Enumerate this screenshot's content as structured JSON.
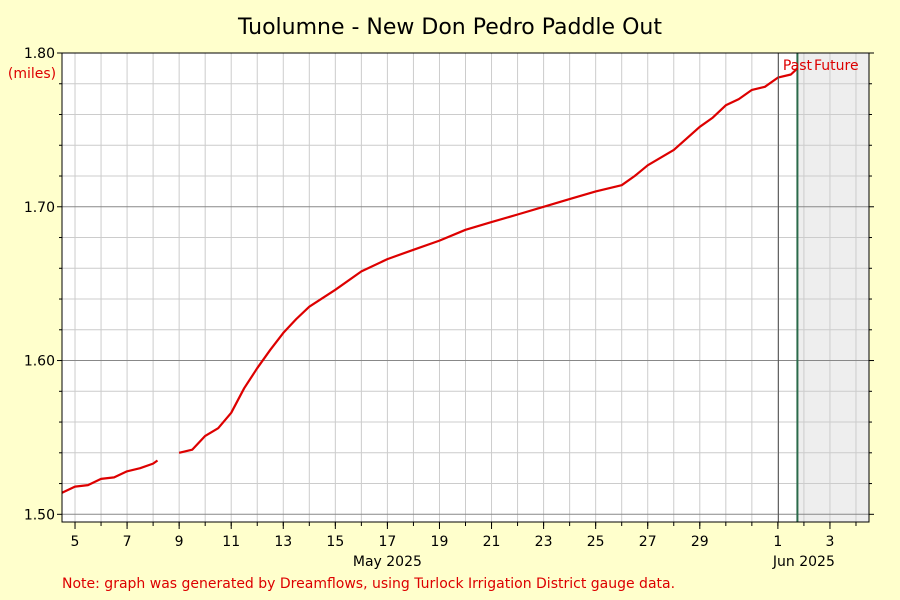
{
  "chart_data": {
    "type": "line",
    "title": "Tuolumne - New Don Pedro Paddle Out",
    "ylabel": "(miles)",
    "ylim": [
      1.495,
      1.8
    ],
    "y_ticks": [
      "1.50",
      "1.60",
      "1.70",
      "1.80"
    ],
    "xlim": [
      "2025-05-04 12:00",
      "2025-06-04 12:00"
    ],
    "x_ticks": [
      {
        "date": "2025-05-05",
        "label": "5"
      },
      {
        "date": "2025-05-07",
        "label": "7"
      },
      {
        "date": "2025-05-09",
        "label": "9"
      },
      {
        "date": "2025-05-11",
        "label": "11"
      },
      {
        "date": "2025-05-13",
        "label": "13"
      },
      {
        "date": "2025-05-15",
        "label": "15"
      },
      {
        "date": "2025-05-17",
        "label": "17"
      },
      {
        "date": "2025-05-19",
        "label": "19"
      },
      {
        "date": "2025-05-21",
        "label": "21"
      },
      {
        "date": "2025-05-23",
        "label": "23"
      },
      {
        "date": "2025-05-25",
        "label": "25"
      },
      {
        "date": "2025-05-27",
        "label": "27"
      },
      {
        "date": "2025-05-29",
        "label": "29"
      },
      {
        "date": "2025-06-01",
        "label": "1"
      },
      {
        "date": "2025-06-03",
        "label": "3"
      }
    ],
    "month_labels": [
      {
        "date": "2025-05-17",
        "label": "May 2025"
      },
      {
        "date": "2025-06-02",
        "label": "Jun 2025"
      }
    ],
    "now": "2025-06-01 18:00",
    "past_label": "Past",
    "future_label": "Future",
    "series": [
      {
        "color": "#dd0000",
        "segments": [
          [
            [
              "2025-05-04 12:00",
              1.514
            ],
            [
              "2025-05-05 00:00",
              1.518
            ],
            [
              "2025-05-05 12:00",
              1.519
            ],
            [
              "2025-05-06 00:00",
              1.523
            ],
            [
              "2025-05-06 12:00",
              1.524
            ],
            [
              "2025-05-07 00:00",
              1.528
            ],
            [
              "2025-05-07 12:00",
              1.53
            ],
            [
              "2025-05-08 00:00",
              1.533
            ],
            [
              "2025-05-08 04:00",
              1.535
            ]
          ],
          [
            [
              "2025-05-09 00:00",
              1.54
            ],
            [
              "2025-05-09 12:00",
              1.542
            ],
            [
              "2025-05-10 00:00",
              1.551
            ],
            [
              "2025-05-10 12:00",
              1.556
            ],
            [
              "2025-05-11 00:00",
              1.566
            ],
            [
              "2025-05-11 12:00",
              1.582
            ],
            [
              "2025-05-12 00:00",
              1.595
            ],
            [
              "2025-05-12 12:00",
              1.607
            ],
            [
              "2025-05-13 00:00",
              1.618
            ],
            [
              "2025-05-13 12:00",
              1.627
            ],
            [
              "2025-05-14 00:00",
              1.635
            ],
            [
              "2025-05-15 00:00",
              1.646
            ],
            [
              "2025-05-16 00:00",
              1.658
            ],
            [
              "2025-05-17 00:00",
              1.666
            ],
            [
              "2025-05-18 00:00",
              1.672
            ],
            [
              "2025-05-19 00:00",
              1.678
            ],
            [
              "2025-05-20 00:00",
              1.685
            ],
            [
              "2025-05-21 00:00",
              1.69
            ],
            [
              "2025-05-22 00:00",
              1.695
            ],
            [
              "2025-05-23 00:00",
              1.7
            ],
            [
              "2025-05-24 00:00",
              1.705
            ],
            [
              "2025-05-25 00:00",
              1.71
            ],
            [
              "2025-05-26 00:00",
              1.714
            ],
            [
              "2025-05-26 12:00",
              1.72
            ],
            [
              "2025-05-27 00:00",
              1.727
            ],
            [
              "2025-05-28 00:00",
              1.737
            ],
            [
              "2025-05-29 00:00",
              1.752
            ],
            [
              "2025-05-29 12:00",
              1.758
            ],
            [
              "2025-05-30 00:00",
              1.766
            ],
            [
              "2025-05-30 12:00",
              1.77
            ],
            [
              "2025-05-31 00:00",
              1.776
            ],
            [
              "2025-05-31 12:00",
              1.778
            ],
            [
              "2025-06-01 00:00",
              1.784
            ],
            [
              "2025-06-01 12:00",
              1.786
            ],
            [
              "2025-06-01 18:00",
              1.79
            ]
          ]
        ]
      }
    ]
  },
  "note": "Note: graph was generated by Dreamflows, using Turlock Irrigation District gauge data.",
  "colors": {
    "background": "#ffffcc",
    "plot_background": "#ffffff",
    "future_background": "#eeeeee",
    "series": "#dd0000",
    "label_red": "#dd0000",
    "now_line": "#2a6a4a",
    "grid_major": "#888888",
    "grid_minor": "#cccccc"
  }
}
